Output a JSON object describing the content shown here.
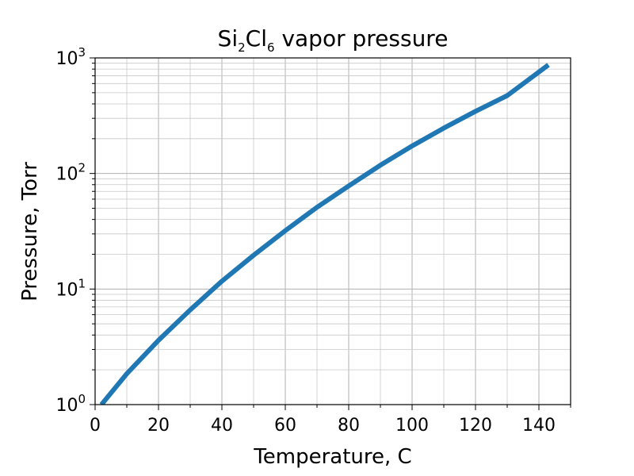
{
  "chart_data": {
    "type": "line",
    "title": "Si2Cl6 vapor pressure",
    "title_parts": {
      "a": "Si",
      "b": "2",
      "c": "Cl",
      "d": "6",
      "e": " vapor pressure"
    },
    "xlabel": "Temperature, C",
    "ylabel": "Pressure, Torr",
    "xlim": [
      0,
      150
    ],
    "ylim": [
      1,
      1000
    ],
    "yscale": "log",
    "grid": true,
    "x_ticks": [
      "0",
      "20",
      "40",
      "60",
      "80",
      "100",
      "120",
      "140"
    ],
    "y_ticks": [
      {
        "base": "10",
        "exp": "0"
      },
      {
        "base": "10",
        "exp": "1"
      },
      {
        "base": "10",
        "exp": "2"
      },
      {
        "base": "10",
        "exp": "3"
      }
    ],
    "line_color": "#1f77b4",
    "series": [
      {
        "x": [
          2,
          10,
          20,
          30,
          40,
          50,
          60,
          70,
          80,
          90,
          100,
          110,
          120,
          130,
          143
        ],
        "y": [
          1.0,
          1.85,
          3.6,
          6.6,
          11.7,
          19.6,
          32,
          51,
          78,
          118,
          173,
          247,
          345,
          472,
          870
        ]
      }
    ]
  }
}
